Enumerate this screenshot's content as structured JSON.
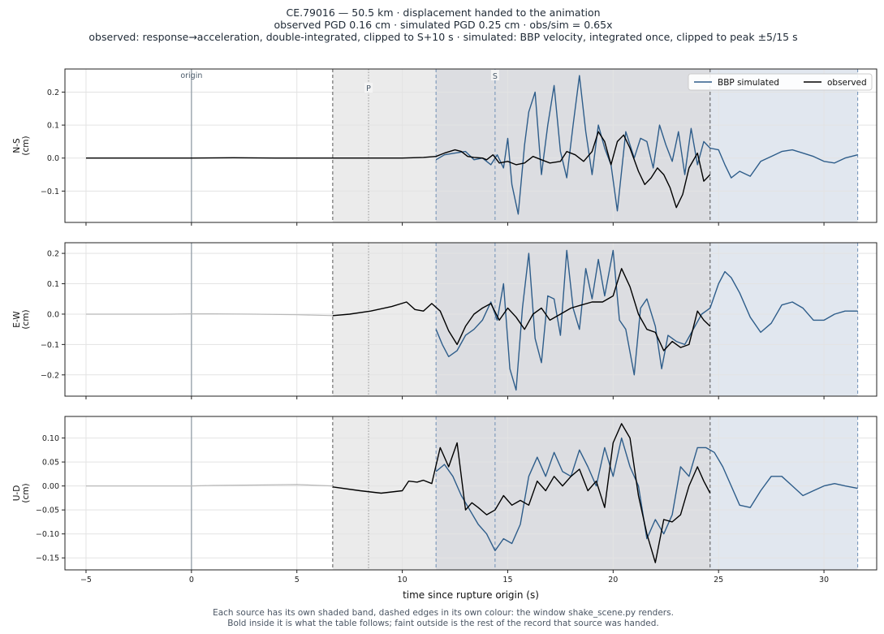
{
  "header": {
    "title_line1": "CE.79016  —  50.5 km   ·   displacement handed to the animation",
    "title_line2": "observed PGD 0.16 cm   ·   simulated PGD 0.25 cm   ·   obs/sim = 0.65x",
    "title_line3": "observed: response→acceleration, double-integrated, clipped to S+10 s   ·   simulated: BBP velocity, integrated once, clipped to peak ±5/15 s"
  },
  "footer": {
    "line1": "Each source has its own shaded band, dashed edges in its own colour: the window shake_scene.py renders.",
    "line2": "Bold inside it is what the table follows;   faint outside is the rest of the record that source was handed."
  },
  "colors": {
    "simulated": "#2e5d8a",
    "observed": "#000000",
    "faint": "#b8b8b8",
    "obs_band": "#ebebeb",
    "sim_band": "#e1e7ef",
    "overlap_band": "#dcdde1",
    "obs_edge": "#555555",
    "sim_edge": "#6f8fb5",
    "origin_line": "#9aa4ad"
  },
  "chart_data": {
    "type": "line",
    "xlabel": "time since rupture origin (s)",
    "xlim": [
      -6,
      32.5
    ],
    "xticks": [
      -5,
      0,
      5,
      10,
      15,
      20,
      25,
      30
    ],
    "x_tick_labels": [
      "−5",
      "0",
      "5",
      "10",
      "15",
      "20",
      "25",
      "30"
    ],
    "grid": true,
    "legend": {
      "position": "top-right",
      "entries": [
        "BBP simulated",
        "observed"
      ]
    },
    "markers": {
      "origin": {
        "x": 0,
        "label": "origin"
      },
      "P": {
        "x": 8.4,
        "label": "P"
      },
      "S": {
        "x": 14.4,
        "label": "S"
      }
    },
    "windows": {
      "observed": [
        6.7,
        24.6
      ],
      "simulated": [
        11.6,
        31.6
      ]
    },
    "observed_faint_end": 6.7,
    "panels": [
      {
        "ylabel": "N-S\n(cm)",
        "ylim": [
          -0.195,
          0.27
        ],
        "yticks": [
          -0.1,
          0.0,
          0.1,
          0.2
        ],
        "ytick_labels": [
          "−0.1",
          "0.0",
          "0.1",
          "0.2"
        ],
        "observed": {
          "x": [
            -5,
            -2,
            0,
            2,
            4,
            6.7,
            8,
            9,
            10,
            11,
            11.6,
            12,
            12.5,
            12.8,
            13.1,
            13.4,
            13.8,
            14.0,
            14.3,
            14.6,
            15.0,
            15.4,
            15.8,
            16.2,
            16.6,
            17.0,
            17.5,
            17.8,
            18.2,
            18.6,
            19.0,
            19.3,
            19.6,
            19.9,
            20.2,
            20.5,
            20.8,
            21.2,
            21.5,
            21.8,
            22.1,
            22.4,
            22.7,
            23.0,
            23.3,
            23.6,
            24.0,
            24.3,
            24.6
          ],
          "y": [
            0,
            0,
            0,
            0.001,
            0,
            0,
            0,
            0,
            0,
            0.002,
            0.005,
            0.015,
            0.025,
            0.02,
            0.005,
            0.002,
            0.0,
            -0.005,
            0.01,
            -0.015,
            -0.01,
            -0.02,
            -0.015,
            0.005,
            -0.005,
            -0.015,
            -0.01,
            0.02,
            0.01,
            -0.01,
            0.02,
            0.08,
            0.05,
            -0.02,
            0.05,
            0.07,
            0.03,
            -0.04,
            -0.08,
            -0.06,
            -0.03,
            -0.05,
            -0.09,
            -0.15,
            -0.11,
            -0.03,
            0.015,
            -0.07,
            -0.05
          ]
        },
        "simulated": {
          "x": [
            11.6,
            12.0,
            12.5,
            13.0,
            13.4,
            13.8,
            14.2,
            14.5,
            14.8,
            15.0,
            15.2,
            15.5,
            15.8,
            16.0,
            16.3,
            16.6,
            16.9,
            17.2,
            17.5,
            17.8,
            18.1,
            18.4,
            18.7,
            19.0,
            19.3,
            19.6,
            19.9,
            20.2,
            20.6,
            21.0,
            21.3,
            21.6,
            21.9,
            22.2,
            22.5,
            22.8,
            23.1,
            23.4,
            23.7,
            24.0,
            24.3,
            24.6,
            25.0,
            25.3,
            25.6,
            26.0,
            26.5,
            27.0,
            27.5,
            28.0,
            28.5,
            29.0,
            29.5,
            30.0,
            30.5,
            31.0,
            31.6
          ],
          "y": [
            -0.005,
            0.01,
            0.015,
            0.02,
            -0.005,
            0.0,
            -0.02,
            0.01,
            -0.03,
            0.06,
            -0.08,
            -0.17,
            0.04,
            0.14,
            0.2,
            -0.05,
            0.1,
            0.22,
            0.02,
            -0.06,
            0.1,
            0.25,
            0.08,
            -0.05,
            0.1,
            0.03,
            -0.02,
            -0.16,
            0.08,
            0.0,
            0.06,
            0.05,
            -0.03,
            0.1,
            0.04,
            -0.01,
            0.08,
            -0.05,
            0.09,
            -0.02,
            0.05,
            0.03,
            0.025,
            -0.02,
            -0.06,
            -0.04,
            -0.055,
            -0.01,
            0.005,
            0.02,
            0.025,
            0.015,
            0.005,
            -0.01,
            -0.015,
            0.0,
            0.01
          ]
        },
        "faint_observed": {
          "x": [
            -5,
            -3,
            -1,
            0,
            1,
            3,
            5,
            6.7
          ],
          "y": [
            0,
            0,
            0,
            0,
            0,
            0,
            0,
            0
          ]
        }
      },
      {
        "ylabel": "E-W\n(cm)",
        "ylim": [
          -0.27,
          0.235
        ],
        "yticks": [
          -0.2,
          -0.1,
          0.0,
          0.1,
          0.2
        ],
        "ytick_labels": [
          "−0.2",
          "−0.1",
          "0.0",
          "0.1",
          "0.2"
        ],
        "observed": {
          "x": [
            6.7,
            7.5,
            8.5,
            9.5,
            10.2,
            10.6,
            11.0,
            11.4,
            11.8,
            12.2,
            12.6,
            13.0,
            13.4,
            13.8,
            14.2,
            14.6,
            15.0,
            15.4,
            15.8,
            16.2,
            16.6,
            17.0,
            17.5,
            18.0,
            18.5,
            19.0,
            19.5,
            20.0,
            20.4,
            20.8,
            21.2,
            21.6,
            22.0,
            22.4,
            22.8,
            23.2,
            23.6,
            24.0,
            24.3,
            24.6
          ],
          "y": [
            -0.005,
            0.0,
            0.01,
            0.025,
            0.04,
            0.015,
            0.01,
            0.035,
            0.01,
            -0.055,
            -0.1,
            -0.04,
            0.0,
            0.02,
            0.035,
            -0.02,
            0.02,
            -0.01,
            -0.05,
            0.0,
            0.02,
            -0.02,
            0.0,
            0.02,
            0.03,
            0.04,
            0.04,
            0.06,
            0.15,
            0.09,
            0.0,
            -0.05,
            -0.06,
            -0.12,
            -0.09,
            -0.11,
            -0.1,
            0.01,
            -0.02,
            -0.04
          ]
        },
        "simulated": {
          "x": [
            11.6,
            11.9,
            12.2,
            12.6,
            13.0,
            13.4,
            13.8,
            14.2,
            14.5,
            14.8,
            15.1,
            15.4,
            15.7,
            16.0,
            16.3,
            16.6,
            16.9,
            17.2,
            17.5,
            17.8,
            18.1,
            18.4,
            18.7,
            19.0,
            19.3,
            19.6,
            20.0,
            20.3,
            20.6,
            21.0,
            21.3,
            21.6,
            22.0,
            22.3,
            22.6,
            23.0,
            23.4,
            23.8,
            24.2,
            24.6,
            25.0,
            25.3,
            25.6,
            26.0,
            26.5,
            27.0,
            27.5,
            28.0,
            28.5,
            29.0,
            29.5,
            30.0,
            30.5,
            31.0,
            31.6
          ],
          "y": [
            -0.05,
            -0.1,
            -0.14,
            -0.12,
            -0.07,
            -0.05,
            -0.02,
            0.04,
            -0.02,
            0.1,
            -0.18,
            -0.25,
            0.02,
            0.2,
            -0.08,
            -0.16,
            0.06,
            0.05,
            -0.07,
            0.21,
            0.02,
            -0.05,
            0.15,
            0.05,
            0.18,
            0.06,
            0.21,
            -0.02,
            -0.05,
            -0.2,
            0.02,
            0.05,
            -0.04,
            -0.18,
            -0.07,
            -0.09,
            -0.1,
            -0.05,
            0.0,
            0.02,
            0.1,
            0.14,
            0.12,
            0.07,
            -0.01,
            -0.06,
            -0.03,
            0.03,
            0.04,
            0.02,
            -0.02,
            -0.02,
            0.0,
            0.01,
            0.01
          ]
        },
        "faint_observed": {
          "x": [
            -5,
            -3,
            -1,
            0,
            1,
            3,
            5,
            6.7
          ],
          "y": [
            0,
            0,
            0,
            0.001,
            0.001,
            0.0,
            -0.002,
            -0.005
          ]
        }
      },
      {
        "ylabel": "U-D\n(cm)",
        "ylim": [
          -0.175,
          0.145
        ],
        "yticks": [
          -0.15,
          -0.1,
          -0.05,
          0.0,
          0.05,
          0.1
        ],
        "ytick_labels": [
          "−0.15",
          "−0.10",
          "−0.05",
          "0.00",
          "0.05",
          "0.10"
        ],
        "observed": {
          "x": [
            6.7,
            8.0,
            9.0,
            10.0,
            10.3,
            10.7,
            11.0,
            11.4,
            11.8,
            12.2,
            12.6,
            13.0,
            13.3,
            13.6,
            14.0,
            14.4,
            14.8,
            15.2,
            15.6,
            16.0,
            16.4,
            16.8,
            17.2,
            17.6,
            18.0,
            18.4,
            18.8,
            19.2,
            19.6,
            20.0,
            20.4,
            20.8,
            21.2,
            21.6,
            22.0,
            22.4,
            22.8,
            23.2,
            23.6,
            24.0,
            24.3,
            24.6
          ],
          "y": [
            -0.002,
            -0.01,
            -0.015,
            -0.01,
            0.01,
            0.008,
            0.012,
            0.005,
            0.08,
            0.04,
            0.09,
            -0.05,
            -0.035,
            -0.045,
            -0.06,
            -0.05,
            -0.02,
            -0.04,
            -0.03,
            -0.04,
            0.01,
            -0.01,
            0.02,
            0.0,
            0.02,
            0.035,
            -0.01,
            0.01,
            -0.045,
            0.09,
            0.13,
            0.1,
            -0.02,
            -0.1,
            -0.16,
            -0.07,
            -0.075,
            -0.06,
            0.0,
            0.04,
            0.01,
            -0.015
          ]
        },
        "simulated": {
          "x": [
            11.6,
            12.0,
            12.4,
            12.8,
            13.2,
            13.6,
            14.0,
            14.4,
            14.8,
            15.2,
            15.6,
            16.0,
            16.4,
            16.8,
            17.2,
            17.6,
            18.0,
            18.4,
            18.8,
            19.2,
            19.6,
            20.0,
            20.4,
            20.8,
            21.2,
            21.6,
            22.0,
            22.4,
            22.8,
            23.2,
            23.6,
            24.0,
            24.4,
            24.8,
            25.2,
            25.6,
            26.0,
            26.5,
            27.0,
            27.5,
            28.0,
            28.5,
            29.0,
            29.5,
            30.0,
            30.5,
            31.0,
            31.6
          ],
          "y": [
            0.03,
            0.045,
            0.02,
            -0.02,
            -0.05,
            -0.08,
            -0.1,
            -0.135,
            -0.11,
            -0.12,
            -0.08,
            0.02,
            0.06,
            0.02,
            0.07,
            0.03,
            0.02,
            0.075,
            0.04,
            0.0,
            0.08,
            0.02,
            0.1,
            0.04,
            0.0,
            -0.11,
            -0.07,
            -0.1,
            -0.06,
            0.04,
            0.02,
            0.08,
            0.08,
            0.07,
            0.04,
            0.0,
            -0.04,
            -0.045,
            -0.01,
            0.02,
            0.02,
            0.0,
            -0.02,
            -0.01,
            0.0,
            0.005,
            0.0,
            -0.005
          ]
        },
        "faint_observed": {
          "x": [
            -5,
            -3,
            -1,
            0,
            1,
            3,
            5,
            6.7
          ],
          "y": [
            0,
            0,
            0,
            0.0,
            0.001,
            0.002,
            0.003,
            0.0
          ]
        }
      }
    ]
  }
}
